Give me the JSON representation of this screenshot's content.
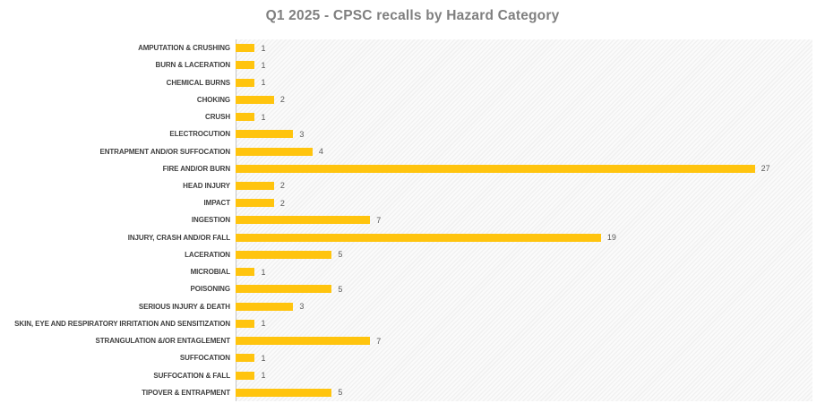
{
  "page": {
    "background_color": "#ffffff"
  },
  "chart_data": {
    "type": "bar",
    "orientation": "horizontal",
    "title": "Q1 2025 - CPSC recalls by Hazard Category",
    "categories": [
      "AMPUTATION & CRUSHING",
      "BURN & LACERATION",
      "CHEMICAL BURNS",
      "CHOKING",
      "CRUSH",
      "ELECTROCUTION",
      "ENTRAPMENT AND/OR SUFFOCATION",
      "FIRE AND/OR BURN",
      "HEAD INJURY",
      "IMPACT",
      "INGESTION",
      "INJURY, CRASH AND/OR FALL",
      "LACERATION",
      "MICROBIAL",
      "POISONING",
      "SERIOUS INJURY & DEATH",
      "SKIN, EYE AND RESPIRATORY IRRITATION AND SENSITIZATION",
      "STRANGULATION &/OR ENTAGLEMENT",
      "SUFFOCATION",
      "SUFFOCATION & FALL",
      "TIPOVER & ENTRAPMENT"
    ],
    "values": [
      1,
      1,
      1,
      2,
      1,
      3,
      4,
      27,
      2,
      2,
      7,
      19,
      5,
      1,
      5,
      3,
      1,
      7,
      1,
      1,
      5
    ],
    "data_labels": [
      "1",
      "1",
      "1",
      "2",
      "1",
      "3",
      "4",
      "27",
      "2",
      "2",
      "7",
      "19",
      "5",
      "1",
      "5",
      "3",
      "1",
      "7",
      "1",
      "1",
      "5"
    ],
    "xlabel": "",
    "ylabel": "",
    "xlim": [
      0,
      30
    ],
    "grid": false,
    "legend": false,
    "bar_color": "#FFC40E",
    "title_color": "#7f7f7f",
    "category_label_color": "#404040",
    "value_label_color": "#595959",
    "axis_line_color": "#c6c6c6",
    "plot_background": "hatched-light-gray"
  }
}
